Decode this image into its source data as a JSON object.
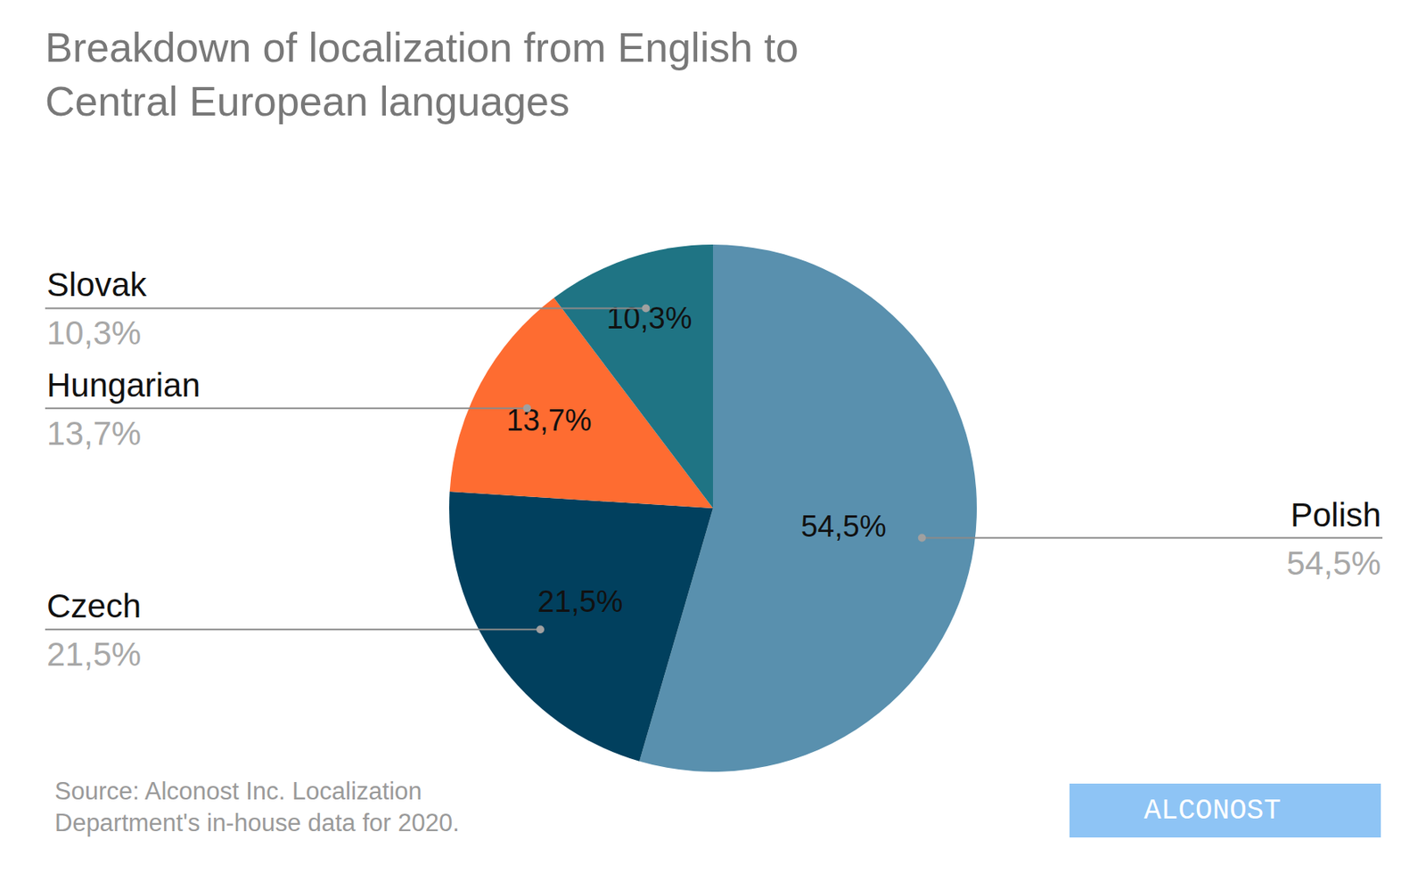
{
  "chart_data": {
    "type": "pie",
    "title": "Breakdown of localization from English to Central European languages",
    "categories": [
      "Polish",
      "Czech",
      "Hungarian",
      "Slovak"
    ],
    "values": [
      54.5,
      21.5,
      13.7,
      10.3
    ],
    "value_labels": [
      "54,5%",
      "21,5%",
      "13,7%",
      "10,3%"
    ],
    "colors": [
      "#5990ae",
      "#01405e",
      "#fe6c31",
      "#1f7484"
    ],
    "data_labels": true,
    "annotations": [
      "Source: Alconost Inc. Localization Department's in-house data for 2020.",
      "ALCONOST"
    ]
  }
}
